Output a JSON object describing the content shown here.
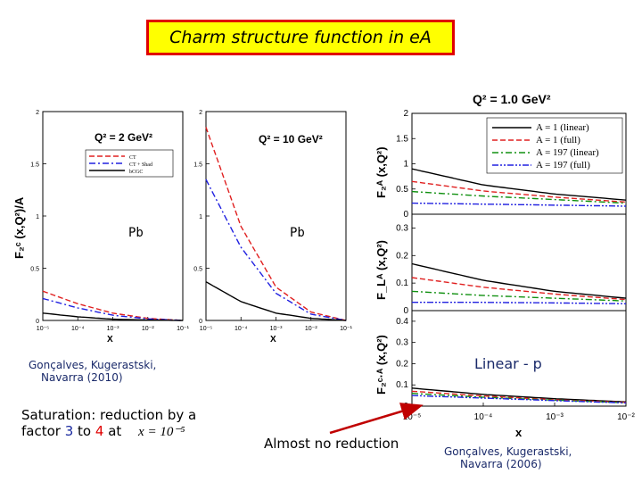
{
  "page_title": "Charm structure function in  eA",
  "panels": {
    "left_ylabel": "F₂ᶜ (x,Q²)/A",
    "left1": {
      "q2": "Q² = 2 GeV²",
      "pb": "Pb",
      "legend": [
        "CT",
        "CT + Shad",
        "bCGC"
      ],
      "yticks": [
        "2",
        "1.5",
        "1",
        "0.5",
        "0"
      ],
      "xticks": [
        "10⁻⁵",
        "10⁻⁴",
        "10⁻³",
        "10⁻²",
        "10⁻¹"
      ],
      "xlabel": "X"
    },
    "left2": {
      "q2": "Q² = 10 GeV²",
      "pb": "Pb",
      "yticks": [
        "2",
        "1.5",
        "1",
        "0.5",
        "0"
      ],
      "xticks": [
        "10⁻⁵",
        "10⁻⁴",
        "10⁻³",
        "10⁻²",
        "10⁻¹"
      ],
      "xlabel": "X"
    },
    "right": {
      "title": "Q² = 1.0 GeV²",
      "legend": [
        "A = 1 (linear)",
        "A = 1 (full)",
        "A = 197 (linear)",
        "A = 197 (full)"
      ],
      "top_ylabel": "F₂ᴬ (x,Q²)",
      "top_yticks": [
        "2",
        "1.5",
        "1",
        "0.5",
        "0"
      ],
      "mid_ylabel": "F_Lᴬ (x,Q²)",
      "mid_yticks": [
        "0.3",
        "0.2",
        "0.1",
        "0"
      ],
      "bot_ylabel": "F₂ᶜ·ᴬ (x,Q²)",
      "bot_yticks": [
        "0.4",
        "0.3",
        "0.2",
        "0.1",
        "0"
      ],
      "xticks": [
        "10⁻⁵",
        "10⁻⁴",
        "10⁻³",
        "10⁻²"
      ],
      "xlabel": "x"
    }
  },
  "annotations": {
    "cite_left_line1": "Gonçalves, Kugerastski,",
    "cite_left_line2": "Navarra  (2010)",
    "saturation_text_a": "Saturation: reduction by  a",
    "saturation_text_b": "factor ",
    "factor_low": "3",
    "factor_to": " to ",
    "factor_high": "4",
    "factor_at": "  at",
    "x_condition": "x = 10⁻⁵",
    "almost_no_reduction": "Almost no reduction",
    "linear_p": "Linear - p",
    "cite_right_line1": "Gonçalves, Kugerastski,",
    "cite_right_line2": "Navarra  (2006)"
  },
  "colors": {
    "title_bg": "#ffff00",
    "title_border": "#e00000",
    "black": "#000000",
    "red": "#e02020",
    "blue": "#2020e0",
    "green": "#109010",
    "arrow": "#c00000",
    "cite": "#1a2a6a"
  },
  "chart_data": [
    {
      "type": "line",
      "log_x": true,
      "xlabel": "X",
      "ylabel": "F₂ᶜ (x,Q²)/A",
      "title": "Q² = 2 GeV²",
      "ylim": [
        0,
        2
      ],
      "xlim": [
        1e-05,
        0.1
      ],
      "x": [
        1e-05,
        0.0001,
        0.001,
        0.01,
        0.1
      ],
      "series": [
        {
          "name": "CT",
          "values": [
            0.28,
            0.16,
            0.07,
            0.02,
            0.0
          ],
          "color": "#e02020",
          "dash": "dashed"
        },
        {
          "name": "CT + Shad",
          "values": [
            0.21,
            0.12,
            0.05,
            0.015,
            0.0
          ],
          "color": "#2020e0",
          "dash": "dashdot"
        },
        {
          "name": "bCGC",
          "values": [
            0.07,
            0.035,
            0.012,
            0.004,
            0.0
          ],
          "color": "#000000",
          "dash": "solid"
        }
      ]
    },
    {
      "type": "line",
      "log_x": true,
      "xlabel": "X",
      "title": "Q² = 10 GeV²",
      "ylim": [
        0,
        2
      ],
      "xlim": [
        1e-05,
        0.1
      ],
      "x": [
        1e-05,
        0.0001,
        0.001,
        0.01,
        0.1
      ],
      "series": [
        {
          "name": "CT",
          "values": [
            1.85,
            0.9,
            0.32,
            0.08,
            0.0
          ],
          "color": "#e02020",
          "dash": "dashed"
        },
        {
          "name": "CT + Shad",
          "values": [
            1.35,
            0.7,
            0.26,
            0.06,
            0.0
          ],
          "color": "#2020e0",
          "dash": "dashdot"
        },
        {
          "name": "bCGC",
          "values": [
            0.37,
            0.18,
            0.07,
            0.02,
            0.0
          ],
          "color": "#000000",
          "dash": "solid"
        }
      ]
    },
    {
      "type": "line",
      "log_x": true,
      "title": "Q² = 1.0 GeV²",
      "ylabel": "F₂ᴬ (x,Q²)",
      "ylim": [
        0,
        2
      ],
      "xlim": [
        1e-05,
        0.01
      ],
      "x": [
        1e-05,
        0.0001,
        0.001,
        0.01
      ],
      "series": [
        {
          "name": "A = 1 (linear)",
          "values": [
            0.9,
            0.58,
            0.4,
            0.28
          ],
          "color": "#000000",
          "dash": "solid"
        },
        {
          "name": "A = 1 (full)",
          "values": [
            0.65,
            0.46,
            0.34,
            0.24
          ],
          "color": "#e02020",
          "dash": "dashed"
        },
        {
          "name": "A = 197 (linear)",
          "values": [
            0.45,
            0.36,
            0.29,
            0.22
          ],
          "color": "#109010",
          "dash": "dashdot"
        },
        {
          "name": "A = 197 (full)",
          "values": [
            0.22,
            0.2,
            0.18,
            0.16
          ],
          "color": "#2020e0",
          "dash": "dashdotdot"
        }
      ]
    },
    {
      "type": "line",
      "log_x": true,
      "ylabel": "F_Lᴬ (x,Q²)",
      "ylim": [
        0,
        0.35
      ],
      "xlim": [
        1e-05,
        0.01
      ],
      "x": [
        1e-05,
        0.0001,
        0.001,
        0.01
      ],
      "series": [
        {
          "name": "A = 1 (linear)",
          "values": [
            0.17,
            0.11,
            0.07,
            0.045
          ],
          "color": "#000000",
          "dash": "solid"
        },
        {
          "name": "A = 1 (full)",
          "values": [
            0.12,
            0.085,
            0.06,
            0.04
          ],
          "color": "#e02020",
          "dash": "dashed"
        },
        {
          "name": "A = 197 (linear)",
          "values": [
            0.07,
            0.055,
            0.045,
            0.035
          ],
          "color": "#109010",
          "dash": "dashdot"
        },
        {
          "name": "A = 197 (full)",
          "values": [
            0.03,
            0.03,
            0.028,
            0.025
          ],
          "color": "#2020e0",
          "dash": "dashdotdot"
        }
      ]
    },
    {
      "type": "line",
      "log_x": true,
      "xlabel": "x",
      "ylabel": "F₂ᶜ·ᴬ (x,Q²)",
      "ylim": [
        0,
        0.45
      ],
      "xlim": [
        1e-05,
        0.01
      ],
      "x": [
        1e-05,
        0.0001,
        0.001,
        0.01
      ],
      "series": [
        {
          "name": "A = 1 (linear)",
          "values": [
            0.085,
            0.055,
            0.035,
            0.02
          ],
          "color": "#000000",
          "dash": "solid"
        },
        {
          "name": "A = 1 (full)",
          "values": [
            0.07,
            0.048,
            0.03,
            0.018
          ],
          "color": "#e02020",
          "dash": "dashed"
        },
        {
          "name": "A = 197 (linear)",
          "values": [
            0.06,
            0.042,
            0.028,
            0.016
          ],
          "color": "#109010",
          "dash": "dashdot"
        },
        {
          "name": "A = 197 (full)",
          "values": [
            0.05,
            0.038,
            0.026,
            0.015
          ],
          "color": "#2020e0",
          "dash": "dashdotdot"
        }
      ]
    }
  ]
}
